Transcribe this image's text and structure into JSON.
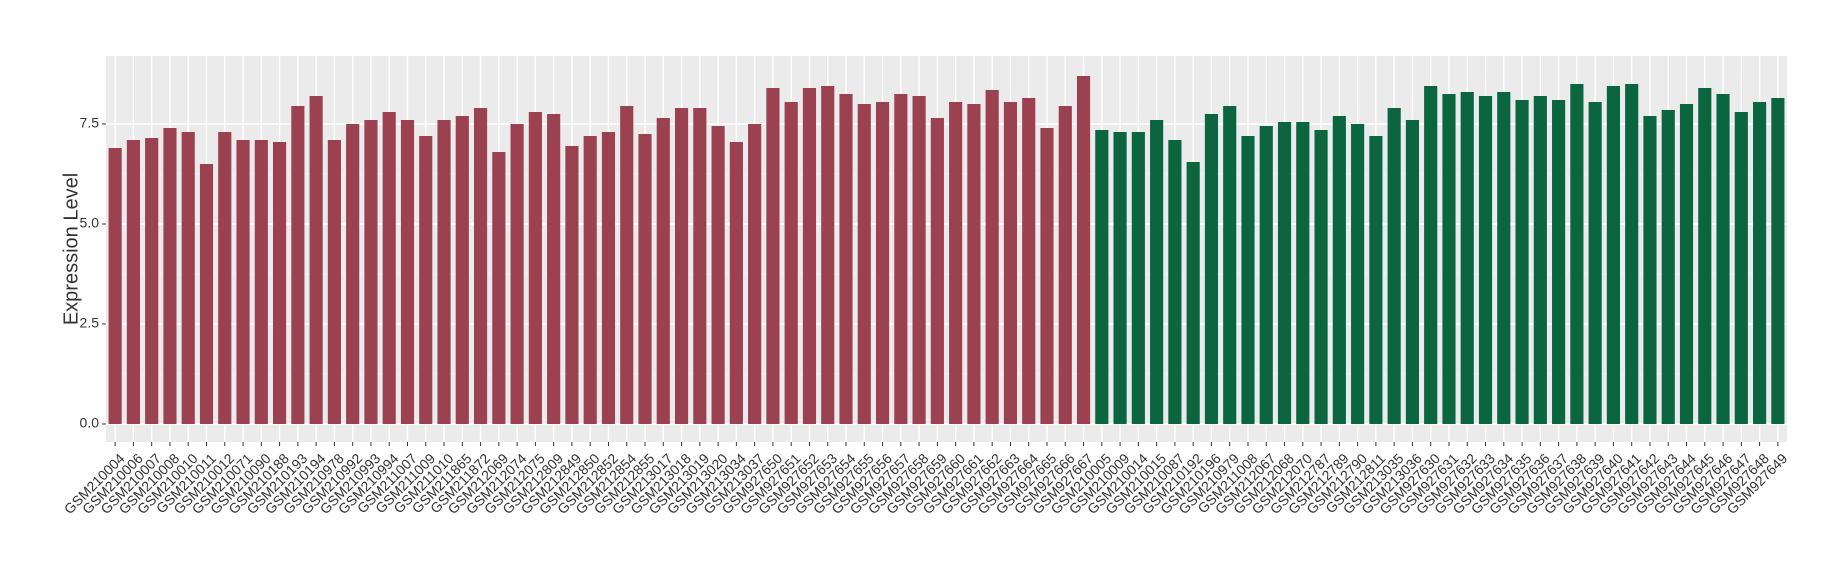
{
  "chart_data": {
    "type": "bar",
    "y_label": "Expression Level",
    "categories": [
      "GSM210004",
      "GSM210006",
      "GSM210007",
      "GSM210008",
      "GSM210010",
      "GSM210011",
      "GSM210012",
      "GSM210071",
      "GSM210090",
      "GSM210188",
      "GSM210193",
      "GSM210194",
      "GSM210978",
      "GSM210992",
      "GSM210993",
      "GSM210994",
      "GSM211007",
      "GSM211009",
      "GSM211010",
      "GSM211865",
      "GSM211872",
      "GSM212069",
      "GSM212074",
      "GSM212075",
      "GSM212809",
      "GSM212849",
      "GSM212850",
      "GSM212852",
      "GSM212854",
      "GSM212855",
      "GSM213017",
      "GSM213018",
      "GSM213019",
      "GSM213020",
      "GSM213034",
      "GSM213037",
      "GSM927650",
      "GSM927651",
      "GSM927652",
      "GSM927653",
      "GSM927654",
      "GSM927655",
      "GSM927656",
      "GSM927657",
      "GSM927658",
      "GSM927659",
      "GSM927660",
      "GSM927661",
      "GSM927662",
      "GSM927663",
      "GSM927664",
      "GSM927665",
      "GSM927666",
      "GSM927667",
      "GSM210005",
      "GSM210009",
      "GSM210014",
      "GSM210015",
      "GSM210087",
      "GSM210192",
      "GSM210196",
      "GSM210979",
      "GSM211008",
      "GSM212067",
      "GSM212068",
      "GSM212070",
      "GSM212787",
      "GSM212789",
      "GSM212790",
      "GSM212811",
      "GSM213035",
      "GSM213036",
      "GSM927630",
      "GSM927631",
      "GSM927632",
      "GSM927633",
      "GSM927634",
      "GSM927635",
      "GSM927636",
      "GSM927637",
      "GSM927638",
      "GSM927639",
      "GSM927640",
      "GSM927641",
      "GSM927642",
      "GSM927643",
      "GSM927644",
      "GSM927645",
      "GSM927646",
      "GSM927647",
      "GSM927648",
      "GSM927649"
    ],
    "values": [
      6.9,
      7.1,
      7.15,
      7.4,
      7.3,
      6.5,
      7.3,
      7.1,
      7.1,
      7.05,
      7.95,
      8.2,
      7.1,
      7.5,
      7.6,
      7.8,
      7.6,
      7.2,
      7.6,
      7.7,
      7.9,
      6.8,
      7.5,
      7.8,
      7.75,
      6.95,
      7.2,
      7.3,
      7.95,
      7.25,
      7.65,
      7.9,
      7.9,
      7.45,
      7.05,
      7.5,
      8.4,
      8.05,
      8.4,
      8.45,
      8.25,
      8.0,
      8.05,
      8.25,
      8.2,
      7.65,
      8.05,
      8.0,
      8.35,
      8.05,
      8.15,
      7.4,
      7.95,
      8.7,
      7.35,
      7.3,
      7.3,
      7.6,
      7.1,
      6.55,
      7.75,
      7.95,
      7.2,
      7.45,
      7.55,
      7.55,
      7.35,
      7.7,
      7.5,
      7.2,
      7.9,
      7.6,
      8.45,
      8.25,
      8.3,
      8.2,
      8.3,
      8.1,
      8.2,
      8.1,
      8.5,
      8.05,
      8.45,
      8.5,
      7.7,
      7.85,
      8.0,
      8.4,
      8.25,
      7.8,
      8.05,
      8.15
    ],
    "colors": [
      "#9b4150",
      "#9b4150",
      "#9b4150",
      "#9b4150",
      "#9b4150",
      "#9b4150",
      "#9b4150",
      "#9b4150",
      "#9b4150",
      "#9b4150",
      "#9b4150",
      "#9b4150",
      "#9b4150",
      "#9b4150",
      "#9b4150",
      "#9b4150",
      "#9b4150",
      "#9b4150",
      "#9b4150",
      "#9b4150",
      "#9b4150",
      "#9b4150",
      "#9b4150",
      "#9b4150",
      "#9b4150",
      "#9b4150",
      "#9b4150",
      "#9b4150",
      "#9b4150",
      "#9b4150",
      "#9b4150",
      "#9b4150",
      "#9b4150",
      "#9b4150",
      "#9b4150",
      "#9b4150",
      "#9b4150",
      "#9b4150",
      "#9b4150",
      "#9b4150",
      "#9b4150",
      "#9b4150",
      "#9b4150",
      "#9b4150",
      "#9b4150",
      "#9b4150",
      "#9b4150",
      "#9b4150",
      "#9b4150",
      "#9b4150",
      "#9b4150",
      "#9b4150",
      "#9b4150",
      "#9b4150",
      "#0b6640",
      "#0b6640",
      "#0b6640",
      "#0b6640",
      "#0b6640",
      "#0b6640",
      "#0b6640",
      "#0b6640",
      "#0b6640",
      "#0b6640",
      "#0b6640",
      "#0b6640",
      "#0b6640",
      "#0b6640",
      "#0b6640",
      "#0b6640",
      "#0b6640",
      "#0b6640",
      "#0b6640",
      "#0b6640",
      "#0b6640",
      "#0b6640",
      "#0b6640",
      "#0b6640",
      "#0b6640",
      "#0b6640",
      "#0b6640",
      "#0b6640",
      "#0b6640",
      "#0b6640",
      "#0b6640",
      "#0b6640",
      "#0b6640",
      "#0b6640",
      "#0b6640",
      "#0b6640",
      "#0b6640",
      "#0b6640"
    ],
    "ylim": [
      -0.45,
      9.2
    ],
    "yticks": [
      {
        "value": 0,
        "label": "0.0"
      },
      {
        "value": 2.5,
        "label": "2.5"
      },
      {
        "value": 5,
        "label": "5.0"
      },
      {
        "value": 7.5,
        "label": "7.5"
      }
    ],
    "grid": true
  }
}
